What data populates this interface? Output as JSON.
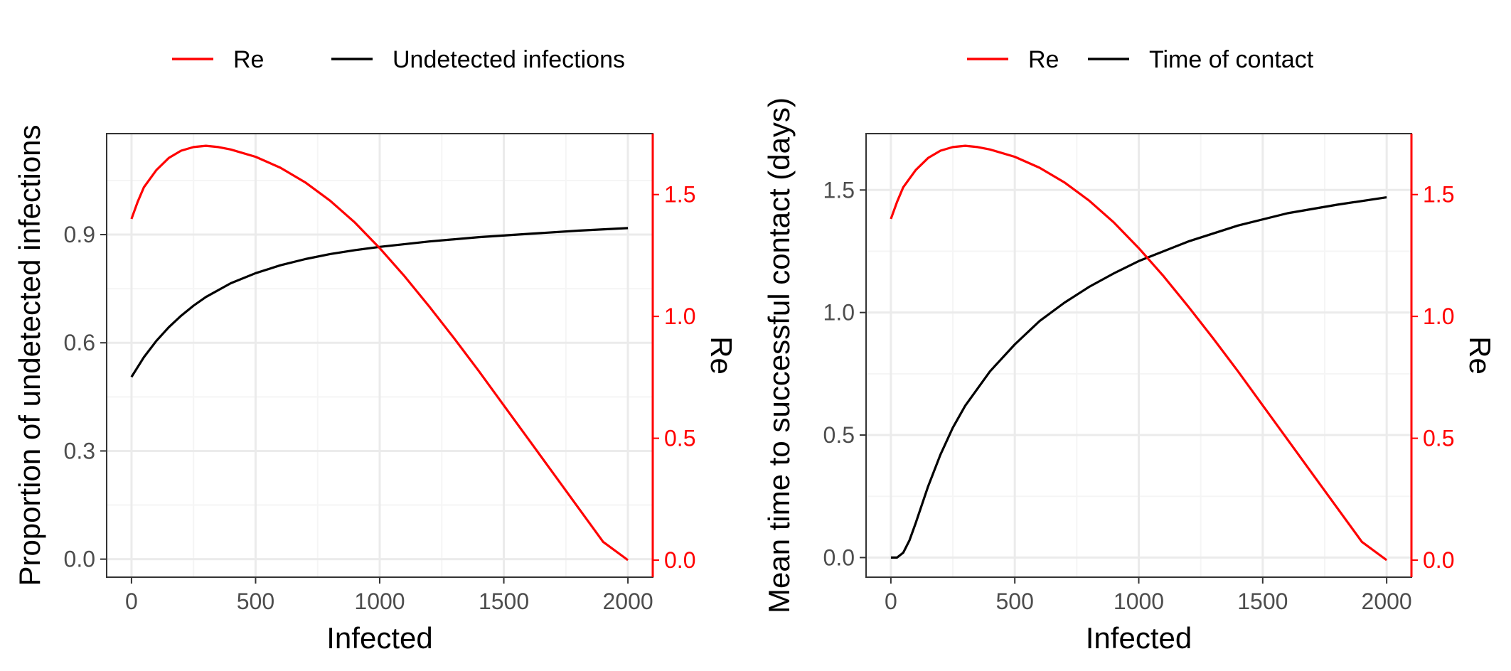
{
  "colors": {
    "primary_series": "#000000",
    "re_series": "#ff0000",
    "grid_major": "#ebebeb",
    "grid_minor": "#f5f5f5",
    "panel_border": "#333333",
    "tick_text": "#4d4d4d"
  },
  "chart_data": [
    {
      "type": "line",
      "legend": {
        "placement": "top",
        "entries": [
          "Re",
          "Undetected infections"
        ]
      },
      "xlabel": "Infected",
      "ylabel": "Proportion of undetected infections",
      "y2label": "Re",
      "xlim": [
        -100,
        2100
      ],
      "ylim": [
        -0.05,
        1.18
      ],
      "y2lim": [
        -0.07,
        1.75
      ],
      "xticks": [
        0,
        500,
        1000,
        1500,
        2000
      ],
      "yticks": [
        0.0,
        0.3,
        0.6,
        0.9
      ],
      "ytick_labels": [
        "0.0",
        "0.3",
        "0.6",
        "0.9"
      ],
      "y2ticks": [
        0.0,
        0.5,
        1.0,
        1.5
      ],
      "y2tick_labels": [
        "0.0",
        "0.5",
        "1.0",
        "1.5"
      ],
      "grid": true,
      "series": [
        {
          "name": "Undetected infections",
          "axis": "left",
          "color": "#000000",
          "x": [
            0,
            50,
            100,
            150,
            200,
            250,
            300,
            400,
            500,
            600,
            700,
            800,
            900,
            1000,
            1200,
            1400,
            1600,
            1800,
            2000
          ],
          "values": [
            0.505,
            0.56,
            0.605,
            0.643,
            0.675,
            0.703,
            0.727,
            0.765,
            0.793,
            0.815,
            0.832,
            0.846,
            0.857,
            0.866,
            0.881,
            0.893,
            0.902,
            0.911,
            0.918
          ]
        },
        {
          "name": "Re",
          "axis": "right",
          "color": "#ff0000",
          "x": [
            0,
            25,
            50,
            100,
            150,
            200,
            250,
            300,
            350,
            400,
            500,
            600,
            700,
            800,
            900,
            1000,
            1100,
            1200,
            1300,
            1400,
            1500,
            1600,
            1700,
            1800,
            1900,
            2000
          ],
          "values": [
            1.4,
            1.47,
            1.53,
            1.6,
            1.65,
            1.68,
            1.695,
            1.7,
            1.695,
            1.685,
            1.655,
            1.61,
            1.55,
            1.475,
            1.385,
            1.28,
            1.165,
            1.04,
            0.91,
            0.775,
            0.635,
            0.495,
            0.355,
            0.215,
            0.075,
            0.0
          ]
        }
      ]
    },
    {
      "type": "line",
      "legend": {
        "placement": "top",
        "entries": [
          "Re",
          "Time of contact"
        ]
      },
      "xlabel": "Infected",
      "ylabel": "Mean time to successful contact (days)",
      "y2label": "Re",
      "xlim": [
        -100,
        2100
      ],
      "ylim": [
        -0.08,
        1.73
      ],
      "y2lim": [
        -0.07,
        1.75
      ],
      "xticks": [
        0,
        500,
        1000,
        1500,
        2000
      ],
      "yticks": [
        0.0,
        0.5,
        1.0,
        1.5
      ],
      "ytick_labels": [
        "0.0",
        "0.5",
        "1.0",
        "1.5"
      ],
      "y2ticks": [
        0.0,
        0.5,
        1.0,
        1.5
      ],
      "y2tick_labels": [
        "0.0",
        "0.5",
        "1.0",
        "1.5"
      ],
      "grid": true,
      "series": [
        {
          "name": "Time of contact",
          "axis": "left",
          "color": "#000000",
          "x": [
            0,
            25,
            50,
            75,
            100,
            150,
            200,
            250,
            300,
            400,
            500,
            600,
            700,
            800,
            900,
            1000,
            1200,
            1400,
            1600,
            1800,
            2000
          ],
          "values": [
            0.0,
            0.0,
            0.02,
            0.07,
            0.14,
            0.29,
            0.42,
            0.53,
            0.62,
            0.76,
            0.87,
            0.965,
            1.04,
            1.105,
            1.16,
            1.21,
            1.29,
            1.355,
            1.405,
            1.44,
            1.47
          ]
        },
        {
          "name": "Re",
          "axis": "right",
          "color": "#ff0000",
          "x": [
            0,
            25,
            50,
            100,
            150,
            200,
            250,
            300,
            350,
            400,
            500,
            600,
            700,
            800,
            900,
            1000,
            1100,
            1200,
            1300,
            1400,
            1500,
            1600,
            1700,
            1800,
            1900,
            2000
          ],
          "values": [
            1.4,
            1.47,
            1.53,
            1.6,
            1.65,
            1.68,
            1.695,
            1.7,
            1.695,
            1.685,
            1.655,
            1.61,
            1.55,
            1.475,
            1.385,
            1.28,
            1.165,
            1.04,
            0.91,
            0.775,
            0.635,
            0.495,
            0.355,
            0.215,
            0.075,
            0.0
          ]
        }
      ]
    }
  ]
}
